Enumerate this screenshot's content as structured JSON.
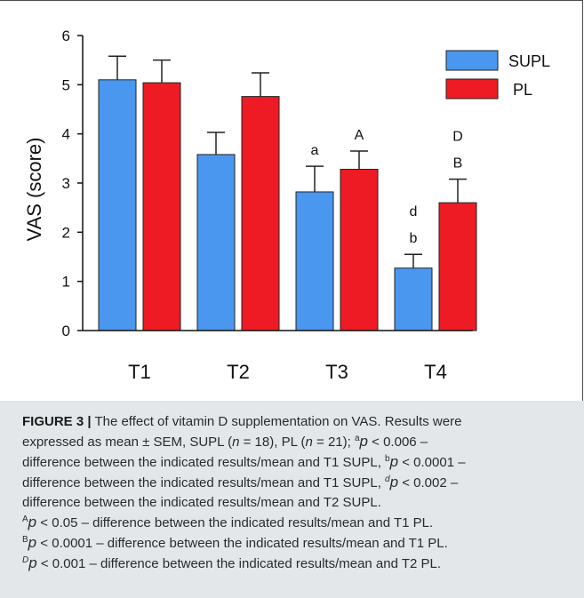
{
  "chart_data": {
    "type": "bar",
    "categories": [
      "T1",
      "T2",
      "T3",
      "T4"
    ],
    "ylabel": "VAS (score)",
    "xlabel": "",
    "ylim": [
      0,
      6
    ],
    "yticks": [
      "0",
      "1",
      "2",
      "3",
      "4",
      "5",
      "6"
    ],
    "error_bars": "SEM (upper only)",
    "legend_position": "top-right",
    "series": [
      {
        "name": "SUPL",
        "color": "#4a97ef",
        "values": [
          5.1,
          3.58,
          2.82,
          1.27
        ],
        "errors": [
          0.48,
          0.45,
          0.52,
          0.28
        ],
        "annotations": [
          [],
          [],
          [
            "a"
          ],
          [
            "b",
            "d"
          ]
        ]
      },
      {
        "name": "PL",
        "color": "#ee1b24",
        "values": [
          5.04,
          4.76,
          3.28,
          2.6
        ],
        "errors": [
          0.46,
          0.48,
          0.37,
          0.48
        ],
        "annotations": [
          [],
          [],
          [
            "A"
          ],
          [
            "B",
            "D"
          ]
        ]
      }
    ]
  },
  "caption": {
    "figure_label": "FIGURE 3 |",
    "l1": "The effect of vitamin D supplementation on VAS. Results were",
    "l2a": "expressed as mean ± SEM, SUPL (",
    "n": "n",
    "l2b": " = 18), PL (",
    "l2c": " = 21); ",
    "sup_a": "a",
    "p": "p",
    "l2d": " < 0.006 –",
    "l3a": "difference between the indicated results/mean and T1 SUPL, ",
    "sup_b": "b",
    "l3b": " < 0.0001 –",
    "l4a": "difference between the indicated results/mean and T1 SUPL, ",
    "sup_d": "d",
    "l4b": " < 0.002 –",
    "l5": "difference between the indicated results/mean and T2 SUPL.",
    "sup_A": "A",
    "l6": " < 0.05 – difference between the indicated results/mean and T1 PL.",
    "sup_B": "B",
    "l7": " < 0.0001 – difference between the indicated results/mean and T1 PL.",
    "sup_D": "D",
    "l8": " < 0.001 – difference between the indicated results/mean and T2 PL."
  }
}
